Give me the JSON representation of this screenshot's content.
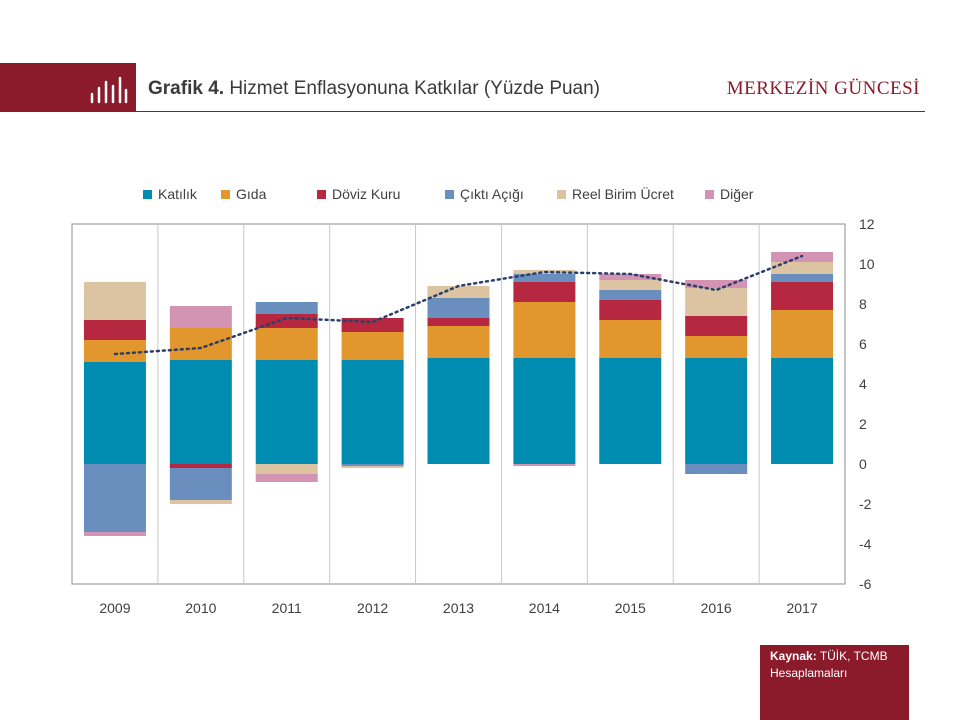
{
  "header": {
    "title_bold": "Grafik 4.",
    "title_rest": "Hizmet Enflasyonuna Katkılar (Yüzde Puan)",
    "brand": "MERKEZİN GÜNCESİ",
    "icon": "bar-chart-icon"
  },
  "source": {
    "label": "Kaynak:",
    "text": "TÜİK, TCMB Hesaplamaları"
  },
  "colors": {
    "accent": "#8b1a2b"
  },
  "chart_data": {
    "type": "bar",
    "stacked": true,
    "categories": [
      "2009",
      "2010",
      "2011",
      "2012",
      "2013",
      "2014",
      "2015",
      "2016",
      "2017"
    ],
    "ylim": [
      -6,
      12
    ],
    "yticks": [
      "12",
      "10",
      "8",
      "6",
      "4",
      "2",
      "0",
      "-2",
      "-4",
      "-6"
    ],
    "grid": "vertical lines between categories",
    "legend_position": "top",
    "series": [
      {
        "name": "Katılık",
        "color": "#008cb0",
        "values": [
          5.1,
          5.2,
          5.2,
          5.2,
          5.3,
          5.3,
          5.3,
          5.3,
          5.3
        ]
      },
      {
        "name": "Gıda",
        "color": "#e2962e",
        "values": [
          1.1,
          1.6,
          1.6,
          1.4,
          1.6,
          2.8,
          1.9,
          1.1,
          2.4
        ]
      },
      {
        "name": "Döviz Kuru",
        "color": "#b5283f",
        "values": [
          1.0,
          -0.2,
          0.7,
          0.7,
          0.4,
          1.0,
          1.0,
          1.0,
          1.4
        ]
      },
      {
        "name": "Çıktı Açığı",
        "color": "#6a8fbe",
        "values": [
          -3.4,
          -1.6,
          0.6,
          -0.1,
          1.0,
          0.4,
          0.5,
          -0.5,
          0.4
        ]
      },
      {
        "name": "Reel Birim Ücret",
        "color": "#dcc3a1",
        "values": [
          1.9,
          -0.2,
          -0.5,
          -0.1,
          0.6,
          0.2,
          0.5,
          1.4,
          0.6
        ]
      },
      {
        "name": "Diğer",
        "color": "#d393b3",
        "values": [
          -0.2,
          1.1,
          -0.4,
          0.0,
          0.0,
          -0.1,
          0.3,
          0.4,
          0.5
        ]
      }
    ],
    "line": {
      "name": "Hizmet Enflasyonu",
      "color": "#2b3f6b",
      "style": "dotted",
      "values": [
        5.5,
        5.8,
        7.3,
        7.1,
        8.9,
        9.6,
        9.5,
        8.7,
        10.4
      ]
    }
  }
}
